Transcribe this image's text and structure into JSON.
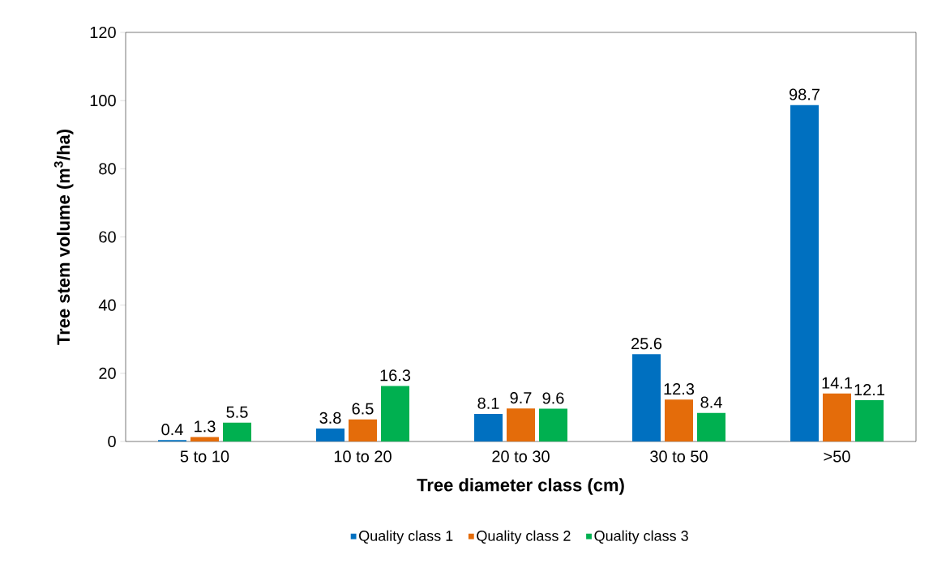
{
  "chart_data": {
    "type": "bar",
    "xlabel": "Tree diameter class (cm)",
    "ylabel": "Tree stem volume (m$^{3}$/ha)",
    "categories": [
      "5 to 10",
      "10 to 20",
      "20 to 30",
      "30 to 50",
      ">50"
    ],
    "series": [
      {
        "name": "Quality class 1",
        "color": "#0070c0",
        "values": [
          0.4,
          3.8,
          8.1,
          25.6,
          98.7
        ]
      },
      {
        "name": "Quality class 2",
        "color": "#e46c0a",
        "values": [
          1.3,
          6.5,
          9.7,
          12.3,
          14.1
        ]
      },
      {
        "name": "Quality class 3",
        "color": "#00b050",
        "values": [
          5.5,
          16.3,
          9.6,
          8.4,
          12.1
        ]
      }
    ],
    "ylim": [
      0,
      120
    ],
    "yticks": [
      0,
      20,
      40,
      60,
      80,
      100,
      120
    ],
    "data_labels": true,
    "legend": "bottom",
    "grid": false
  }
}
